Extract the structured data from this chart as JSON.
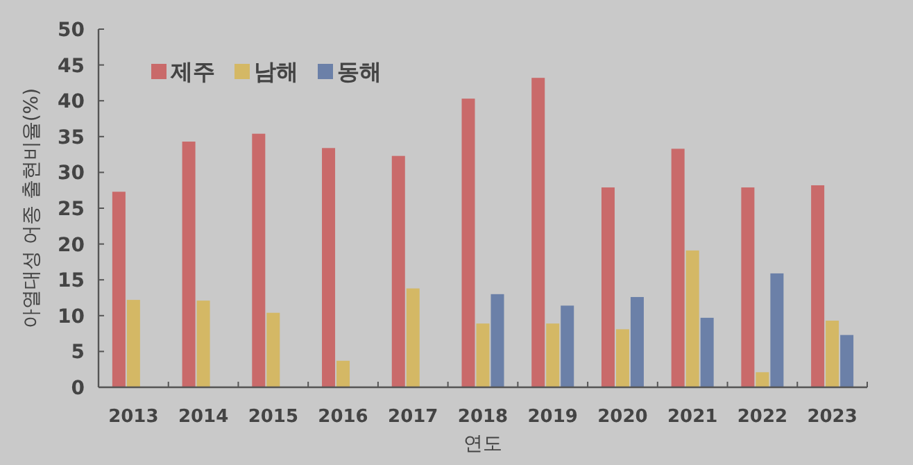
{
  "chart_data": {
    "type": "bar",
    "xlabel": "연도",
    "ylabel": "아열대성 어종 출현비율(%)",
    "categories": [
      "2013",
      "2014",
      "2015",
      "2016",
      "2017",
      "2018",
      "2019",
      "2020",
      "2021",
      "2022",
      "2023"
    ],
    "series": [
      {
        "name": "제주",
        "color": "#c96a6a",
        "values": [
          27.3,
          34.3,
          35.4,
          33.4,
          32.3,
          40.3,
          43.2,
          27.9,
          33.3,
          27.9,
          28.2
        ]
      },
      {
        "name": "남해",
        "color": "#d4b865",
        "values": [
          12.2,
          12.1,
          10.4,
          3.7,
          13.8,
          8.9,
          8.9,
          8.1,
          19.1,
          2.1,
          9.3
        ]
      },
      {
        "name": "동해",
        "color": "#6b80a8",
        "values": [
          null,
          null,
          null,
          null,
          null,
          13.0,
          11.4,
          12.6,
          9.7,
          15.9,
          7.3
        ]
      }
    ],
    "ylim": [
      0,
      50
    ],
    "yticks": [
      0,
      5,
      10,
      15,
      20,
      25,
      30,
      35,
      40,
      45,
      50
    ],
    "grid": false,
    "legend": "top left"
  }
}
